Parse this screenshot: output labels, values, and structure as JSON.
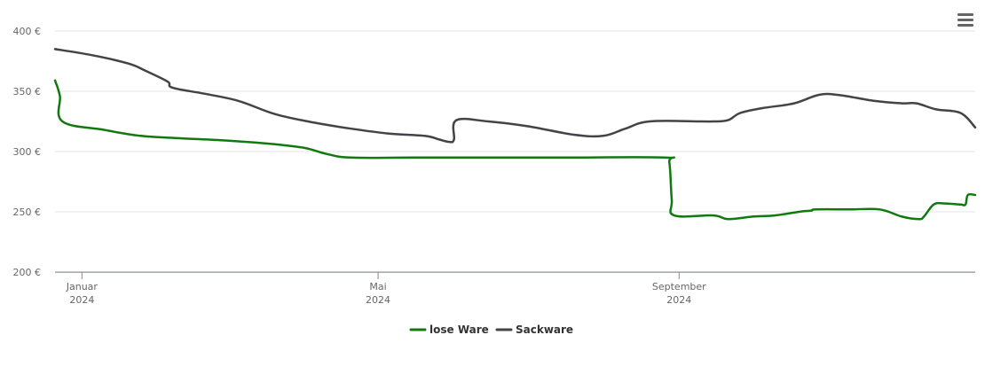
{
  "menu": {
    "icon": "hamburger-menu-icon"
  },
  "chart_data": {
    "type": "line",
    "ylim": [
      200,
      400
    ],
    "y_ticks": [
      {
        "value": 400,
        "label": "400 €"
      },
      {
        "value": 350,
        "label": "350 €"
      },
      {
        "value": 300,
        "label": "300 €"
      },
      {
        "value": 250,
        "label": "250 €"
      },
      {
        "value": 200,
        "label": "200 €"
      }
    ],
    "xlim": [
      "2023-12-21",
      "2024-12-31"
    ],
    "x_ticks": [
      {
        "date": "2024-01-01",
        "month": "Januar",
        "year": "2024"
      },
      {
        "date": "2024-05-01",
        "month": "Mai",
        "year": "2024"
      },
      {
        "date": "2024-09-01",
        "month": "September",
        "year": "2024"
      }
    ],
    "grid": true,
    "legend_position": "bottom-center",
    "series": [
      {
        "name": "lose Ware",
        "color": "#117a0f",
        "points": [
          [
            "2023-12-21",
            359
          ],
          [
            "2023-12-23",
            346
          ],
          [
            "2023-12-24",
            325
          ],
          [
            "2024-01-10",
            318
          ],
          [
            "2024-01-25",
            313
          ],
          [
            "2024-02-10",
            311
          ],
          [
            "2024-03-01",
            309
          ],
          [
            "2024-03-20",
            306
          ],
          [
            "2024-04-01",
            303
          ],
          [
            "2024-04-10",
            298
          ],
          [
            "2024-04-20",
            295
          ],
          [
            "2024-05-15",
            295
          ],
          [
            "2024-06-15",
            295
          ],
          [
            "2024-07-15",
            295
          ],
          [
            "2024-08-26",
            295
          ],
          [
            "2024-08-28",
            291
          ],
          [
            "2024-08-29",
            260
          ],
          [
            "2024-08-30",
            247
          ],
          [
            "2024-09-15",
            247
          ],
          [
            "2024-09-21",
            244
          ],
          [
            "2024-10-01",
            246
          ],
          [
            "2024-10-10",
            247
          ],
          [
            "2024-10-20",
            250
          ],
          [
            "2024-10-25",
            251
          ],
          [
            "2024-10-27",
            252
          ],
          [
            "2024-11-10",
            252
          ],
          [
            "2024-11-22",
            252
          ],
          [
            "2024-12-01",
            246
          ],
          [
            "2024-12-08",
            244
          ],
          [
            "2024-12-10",
            246
          ],
          [
            "2024-12-14",
            256
          ],
          [
            "2024-12-18",
            257
          ],
          [
            "2024-12-25",
            256
          ],
          [
            "2024-12-27",
            256
          ],
          [
            "2024-12-28",
            264
          ],
          [
            "2024-12-31",
            264
          ]
        ]
      },
      {
        "name": "Sackware",
        "color": "#434348",
        "points": [
          [
            "2023-12-21",
            385
          ],
          [
            "2024-01-05",
            380
          ],
          [
            "2024-01-20",
            373
          ],
          [
            "2024-01-27",
            367
          ],
          [
            "2024-02-05",
            358
          ],
          [
            "2024-02-07",
            353
          ],
          [
            "2024-02-20",
            348
          ],
          [
            "2024-03-05",
            342
          ],
          [
            "2024-03-20",
            331
          ],
          [
            "2024-04-05",
            324
          ],
          [
            "2024-04-20",
            319
          ],
          [
            "2024-05-05",
            315
          ],
          [
            "2024-05-20",
            313
          ],
          [
            "2024-05-26",
            310
          ],
          [
            "2024-05-30",
            308
          ],
          [
            "2024-06-01",
            310
          ],
          [
            "2024-06-02",
            326
          ],
          [
            "2024-06-15",
            325
          ],
          [
            "2024-07-01",
            321
          ],
          [
            "2024-07-20",
            314
          ],
          [
            "2024-08-01",
            313
          ],
          [
            "2024-08-10",
            319
          ],
          [
            "2024-08-20",
            325
          ],
          [
            "2024-09-10",
            325
          ],
          [
            "2024-09-15",
            325
          ],
          [
            "2024-09-21",
            326
          ],
          [
            "2024-09-26",
            332
          ],
          [
            "2024-10-05",
            336
          ],
          [
            "2024-10-18",
            340
          ],
          [
            "2024-10-28",
            347
          ],
          [
            "2024-11-05",
            347
          ],
          [
            "2024-11-20",
            342
          ],
          [
            "2024-12-01",
            340
          ],
          [
            "2024-12-07",
            340
          ],
          [
            "2024-12-15",
            335
          ],
          [
            "2024-12-25",
            332
          ],
          [
            "2024-12-31",
            320
          ]
        ]
      }
    ]
  }
}
